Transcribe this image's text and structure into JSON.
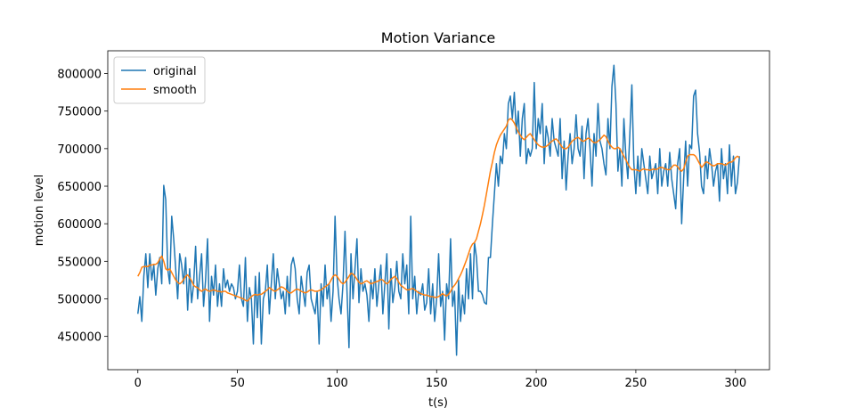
{
  "chart_data": {
    "type": "line",
    "title": "Motion Variance",
    "xlabel": "t(s)",
    "ylabel": "motion level",
    "legend": "upper left",
    "x": [
      0,
      1,
      2,
      3,
      4,
      5,
      6,
      7,
      8,
      9,
      10,
      11,
      12,
      13,
      14,
      15,
      16,
      17,
      18,
      19,
      20,
      21,
      22,
      23,
      24,
      25,
      26,
      27,
      28,
      29,
      30,
      31,
      32,
      33,
      34,
      35,
      36,
      37,
      38,
      39,
      40,
      41,
      42,
      43,
      44,
      45,
      46,
      47,
      48,
      49,
      50,
      51,
      52,
      53,
      54,
      55,
      56,
      57,
      58,
      59,
      60,
      61,
      62,
      63,
      64,
      65,
      66,
      67,
      68,
      69,
      70,
      71,
      72,
      73,
      74,
      75,
      76,
      77,
      78,
      79,
      80,
      81,
      82,
      83,
      84,
      85,
      86,
      87,
      88,
      89,
      90,
      91,
      92,
      93,
      94,
      95,
      96,
      97,
      98,
      99,
      100,
      101,
      102,
      103,
      104,
      105,
      106,
      107,
      108,
      109,
      110,
      111,
      112,
      113,
      114,
      115,
      116,
      117,
      118,
      119,
      120,
      121,
      122,
      123,
      124,
      125,
      126,
      127,
      128,
      129,
      130,
      131,
      132,
      133,
      134,
      135,
      136,
      137,
      138,
      139,
      140,
      141,
      142,
      143,
      144,
      145,
      146,
      147,
      148,
      149,
      150,
      151,
      152,
      153,
      154,
      155,
      156,
      157,
      158,
      159,
      160,
      161,
      162,
      163,
      164,
      165,
      166,
      167,
      168,
      169,
      170,
      171,
      172,
      173,
      174,
      175,
      176,
      177,
      178,
      179,
      180,
      181,
      182,
      183,
      184,
      185,
      186,
      187,
      188,
      189,
      190,
      191,
      192,
      193,
      194,
      195,
      196,
      197,
      198,
      199,
      200,
      201,
      202,
      203,
      204,
      205,
      206,
      207,
      208,
      209,
      210,
      211,
      212,
      213,
      214,
      215,
      216,
      217,
      218,
      219,
      220,
      221,
      222,
      223,
      224,
      225,
      226,
      227,
      228,
      229,
      230,
      231,
      232,
      233,
      234,
      235,
      236,
      237,
      238,
      239,
      240,
      241,
      242,
      243,
      244,
      245,
      246,
      247,
      248,
      249,
      250,
      251,
      252,
      253,
      254,
      255,
      256,
      257,
      258,
      259,
      260,
      261,
      262,
      263,
      264,
      265,
      266,
      267,
      268,
      269,
      270,
      271,
      272,
      273,
      274,
      275,
      276,
      277,
      278,
      279,
      280,
      281,
      282,
      283,
      284,
      285,
      286,
      287,
      288,
      289,
      290,
      291,
      292,
      293,
      294,
      295,
      296,
      297,
      298,
      299,
      300,
      301,
      302
    ],
    "series": [
      {
        "name": "original",
        "color": "#1f77b4",
        "values": [
          480000,
          503000,
          470000,
          530000,
          560000,
          515000,
          560000,
          525000,
          545000,
          505000,
          540000,
          555000,
          520000,
          651000,
          632000,
          540000,
          520000,
          610000,
          580000,
          540000,
          500000,
          560000,
          545000,
          520000,
          555000,
          485000,
          540000,
          495000,
          520000,
          570000,
          500000,
          530000,
          560000,
          490000,
          525000,
          580000,
          470000,
          530000,
          505000,
          545000,
          490000,
          520000,
          490000,
          540000,
          515000,
          525000,
          510000,
          520000,
          515000,
          500000,
          510000,
          545000,
          500000,
          490000,
          555000,
          470000,
          515000,
          500000,
          440000,
          530000,
          475000,
          535000,
          440000,
          500000,
          510000,
          545000,
          480000,
          520000,
          560000,
          500000,
          540000,
          520000,
          500000,
          510000,
          480000,
          530000,
          490000,
          545000,
          555000,
          540000,
          500000,
          480000,
          530000,
          510000,
          490000,
          535000,
          545000,
          500000,
          490000,
          480000,
          510000,
          440000,
          520000,
          490000,
          545000,
          500000,
          520000,
          470000,
          510000,
          610000,
          530000,
          500000,
          480000,
          520000,
          590000,
          510000,
          435000,
          560000,
          500000,
          540000,
          580000,
          495000,
          540000,
          510000,
          520000,
          505000,
          470000,
          525000,
          500000,
          540000,
          490000,
          520000,
          545000,
          480000,
          520000,
          560000,
          460000,
          540000,
          495000,
          515000,
          550000,
          510000,
          500000,
          560000,
          520000,
          545000,
          480000,
          610000,
          500000,
          530000,
          480000,
          510000,
          505000,
          520000,
          485000,
          495000,
          540000,
          480000,
          520000,
          470000,
          500000,
          560000,
          490000,
          510000,
          445000,
          520000,
          500000,
          580000,
          490000,
          510000,
          425000,
          525000,
          470000,
          505000,
          480000,
          540000,
          500000,
          560000,
          500000,
          575000,
          555000,
          510000,
          510000,
          505000,
          495000,
          493000,
          555000,
          555000,
          600000,
          640000,
          680000,
          650000,
          690000,
          680000,
          720000,
          700000,
          760000,
          770000,
          740000,
          775000,
          720000,
          750000,
          690000,
          740000,
          760000,
          680000,
          700000,
          690000,
          700000,
          788000,
          700000,
          740000,
          720000,
          760000,
          680000,
          730000,
          715000,
          690000,
          740000,
          710000,
          700000,
          690000,
          740000,
          660000,
          710000,
          645000,
          690000,
          720000,
          680000,
          700000,
          745000,
          700000,
          690000,
          730000,
          660000,
          720000,
          740000,
          700000,
          650000,
          720000,
          690000,
          760000,
          710000,
          700000,
          680000,
          665000,
          740000,
          700000,
          783000,
          811000,
          760000,
          670000,
          700000,
          650000,
          740000,
          690000,
          660000,
          720000,
          785000,
          680000,
          640000,
          690000,
          650000,
          700000,
          680000,
          660000,
          640000,
          690000,
          660000,
          670000,
          680000,
          640000,
          700000,
          650000,
          670000,
          680000,
          650000,
          695000,
          660000,
          640000,
          620000,
          680000,
          700000,
          600000,
          660000,
          710000,
          650000,
          705000,
          700000,
          770000,
          778000,
          720000,
          695000,
          650000,
          640000,
          690000,
          660000,
          700000,
          680000,
          650000,
          670000,
          680000,
          630000,
          700000,
          660000,
          680000,
          640000,
          705000,
          650000,
          690000,
          640000,
          655000,
          690000
        ]
      },
      {
        "name": "smooth",
        "color": "#ff7f0e",
        "values": [
          530000,
          535000,
          542000,
          543000,
          543000,
          543000,
          545000,
          545000,
          546000,
          546000,
          548000,
          553000,
          557000,
          550000,
          540000,
          538000,
          540000,
          535000,
          530000,
          525000,
          522000,
          520000,
          522000,
          526000,
          530000,
          532000,
          528000,
          524000,
          518000,
          516000,
          515000,
          512000,
          510000,
          512000,
          513000,
          511000,
          510000,
          511000,
          512000,
          511000,
          510000,
          510000,
          509000,
          510000,
          510000,
          508000,
          507000,
          506000,
          505000,
          504000,
          503000,
          502000,
          501000,
          500000,
          498000,
          497000,
          500000,
          503000,
          505000,
          506000,
          505000,
          506000,
          506000,
          508000,
          510000,
          512000,
          515000,
          513000,
          511000,
          510000,
          512000,
          514000,
          516000,
          515000,
          513000,
          510000,
          508000,
          508000,
          510000,
          512000,
          513000,
          512000,
          510000,
          509000,
          508000,
          509000,
          511000,
          512000,
          511000,
          510000,
          510000,
          511000,
          512000,
          514000,
          516000,
          518000,
          520000,
          525000,
          530000,
          532000,
          530000,
          526000,
          522000,
          520000,
          522000,
          526000,
          530000,
          534000,
          533000,
          530000,
          526000,
          522000,
          520000,
          521000,
          523000,
          524000,
          522000,
          520000,
          521000,
          522000,
          523000,
          524000,
          526000,
          525000,
          522000,
          520000,
          522000,
          526000,
          528000,
          530000,
          527000,
          522000,
          518000,
          516000,
          514000,
          512000,
          512000,
          513000,
          514000,
          512000,
          510000,
          508000,
          507000,
          506000,
          505000,
          505000,
          504000,
          503000,
          503000,
          502000,
          502000,
          503000,
          505000,
          507000,
          505000,
          504000,
          506000,
          510000,
          515000,
          518000,
          522000,
          527000,
          532000,
          538000,
          545000,
          552000,
          560000,
          568000,
          573000,
          575000,
          580000,
          590000,
          600000,
          612000,
          625000,
          640000,
          655000,
          670000,
          682000,
          695000,
          705000,
          712000,
          718000,
          722000,
          726000,
          730000,
          738000,
          740000,
          738000,
          734000,
          728000,
          722000,
          718000,
          714000,
          712000,
          715000,
          718000,
          720000,
          716000,
          712000,
          708000,
          705000,
          703000,
          702000,
          702000,
          703000,
          705000,
          708000,
          710000,
          712000,
          713000,
          710000,
          706000,
          702000,
          700000,
          700000,
          702000,
          706000,
          710000,
          712000,
          714000,
          715000,
          713000,
          710000,
          710000,
          712000,
          714000,
          713000,
          710000,
          708000,
          708000,
          710000,
          712000,
          715000,
          718000,
          716000,
          710000,
          705000,
          702000,
          700000,
          700000,
          702000,
          700000,
          695000,
          690000,
          685000,
          680000,
          675000,
          672000,
          672000,
          672000,
          671000,
          670000,
          672000,
          673000,
          672000,
          672000,
          671000,
          672000,
          673000,
          672000,
          673000,
          675000,
          675000,
          674000,
          673000,
          672000,
          672000,
          675000,
          678000,
          678000,
          676000,
          672000,
          670000,
          673000,
          682000,
          690000,
          692000,
          692000,
          692000,
          690000,
          685000,
          680000,
          675000,
          678000,
          682000,
          682000,
          680000,
          678000,
          677000,
          678000,
          680000,
          680000,
          680000,
          679000,
          678000,
          680000,
          682000,
          682000,
          684000,
          688000,
          690000,
          688000
        ]
      }
    ],
    "xlim": [
      -15.1,
      317.1
    ],
    "xticks": [
      0,
      50,
      100,
      150,
      200,
      250,
      300
    ],
    "ylim": [
      405700,
      830300
    ],
    "yticks": [
      450000,
      500000,
      550000,
      600000,
      650000,
      700000,
      750000,
      800000
    ],
    "grid": false
  }
}
